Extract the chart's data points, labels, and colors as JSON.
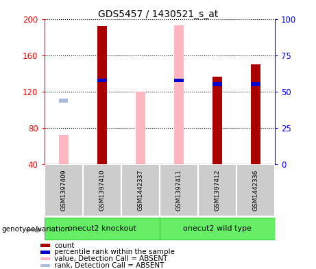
{
  "title": "GDS5457 / 1430521_s_at",
  "samples": [
    "GSM1397409",
    "GSM1397410",
    "GSM1442337",
    "GSM1397411",
    "GSM1397412",
    "GSM1442336"
  ],
  "count_values": [
    null,
    192,
    null,
    null,
    136,
    150
  ],
  "count_absent_values": [
    72,
    null,
    120,
    193,
    null,
    null
  ],
  "percentile_values": [
    null,
    130,
    null,
    130,
    126,
    126
  ],
  "rank_absent_values": [
    110,
    null,
    null,
    null,
    null,
    null
  ],
  "ylim": [
    40,
    200
  ],
  "y2lim": [
    0,
    100
  ],
  "yticks": [
    40,
    80,
    120,
    160,
    200
  ],
  "y2ticks": [
    0,
    25,
    50,
    75,
    100
  ],
  "color_count": "#AA0000",
  "color_percentile": "#0000CC",
  "color_count_absent": "#FFB6C1",
  "color_rank_absent": "#AABBDD",
  "group1_label": "onecut2 knockout",
  "group2_label": "onecut2 wild type",
  "group_color": "#66EE66",
  "group_edge_color": "#33CC33",
  "sample_bg_color": "#CCCCCC",
  "sample_edge_color": "#999999",
  "group_label_text": "genotype/variation",
  "legend_items": [
    {
      "color": "#AA0000",
      "label": "count"
    },
    {
      "color": "#0000CC",
      "label": "percentile rank within the sample"
    },
    {
      "color": "#FFB6C1",
      "label": "value, Detection Call = ABSENT"
    },
    {
      "color": "#AABBDD",
      "label": "rank, Detection Call = ABSENT"
    }
  ],
  "bar_width": 0.25
}
